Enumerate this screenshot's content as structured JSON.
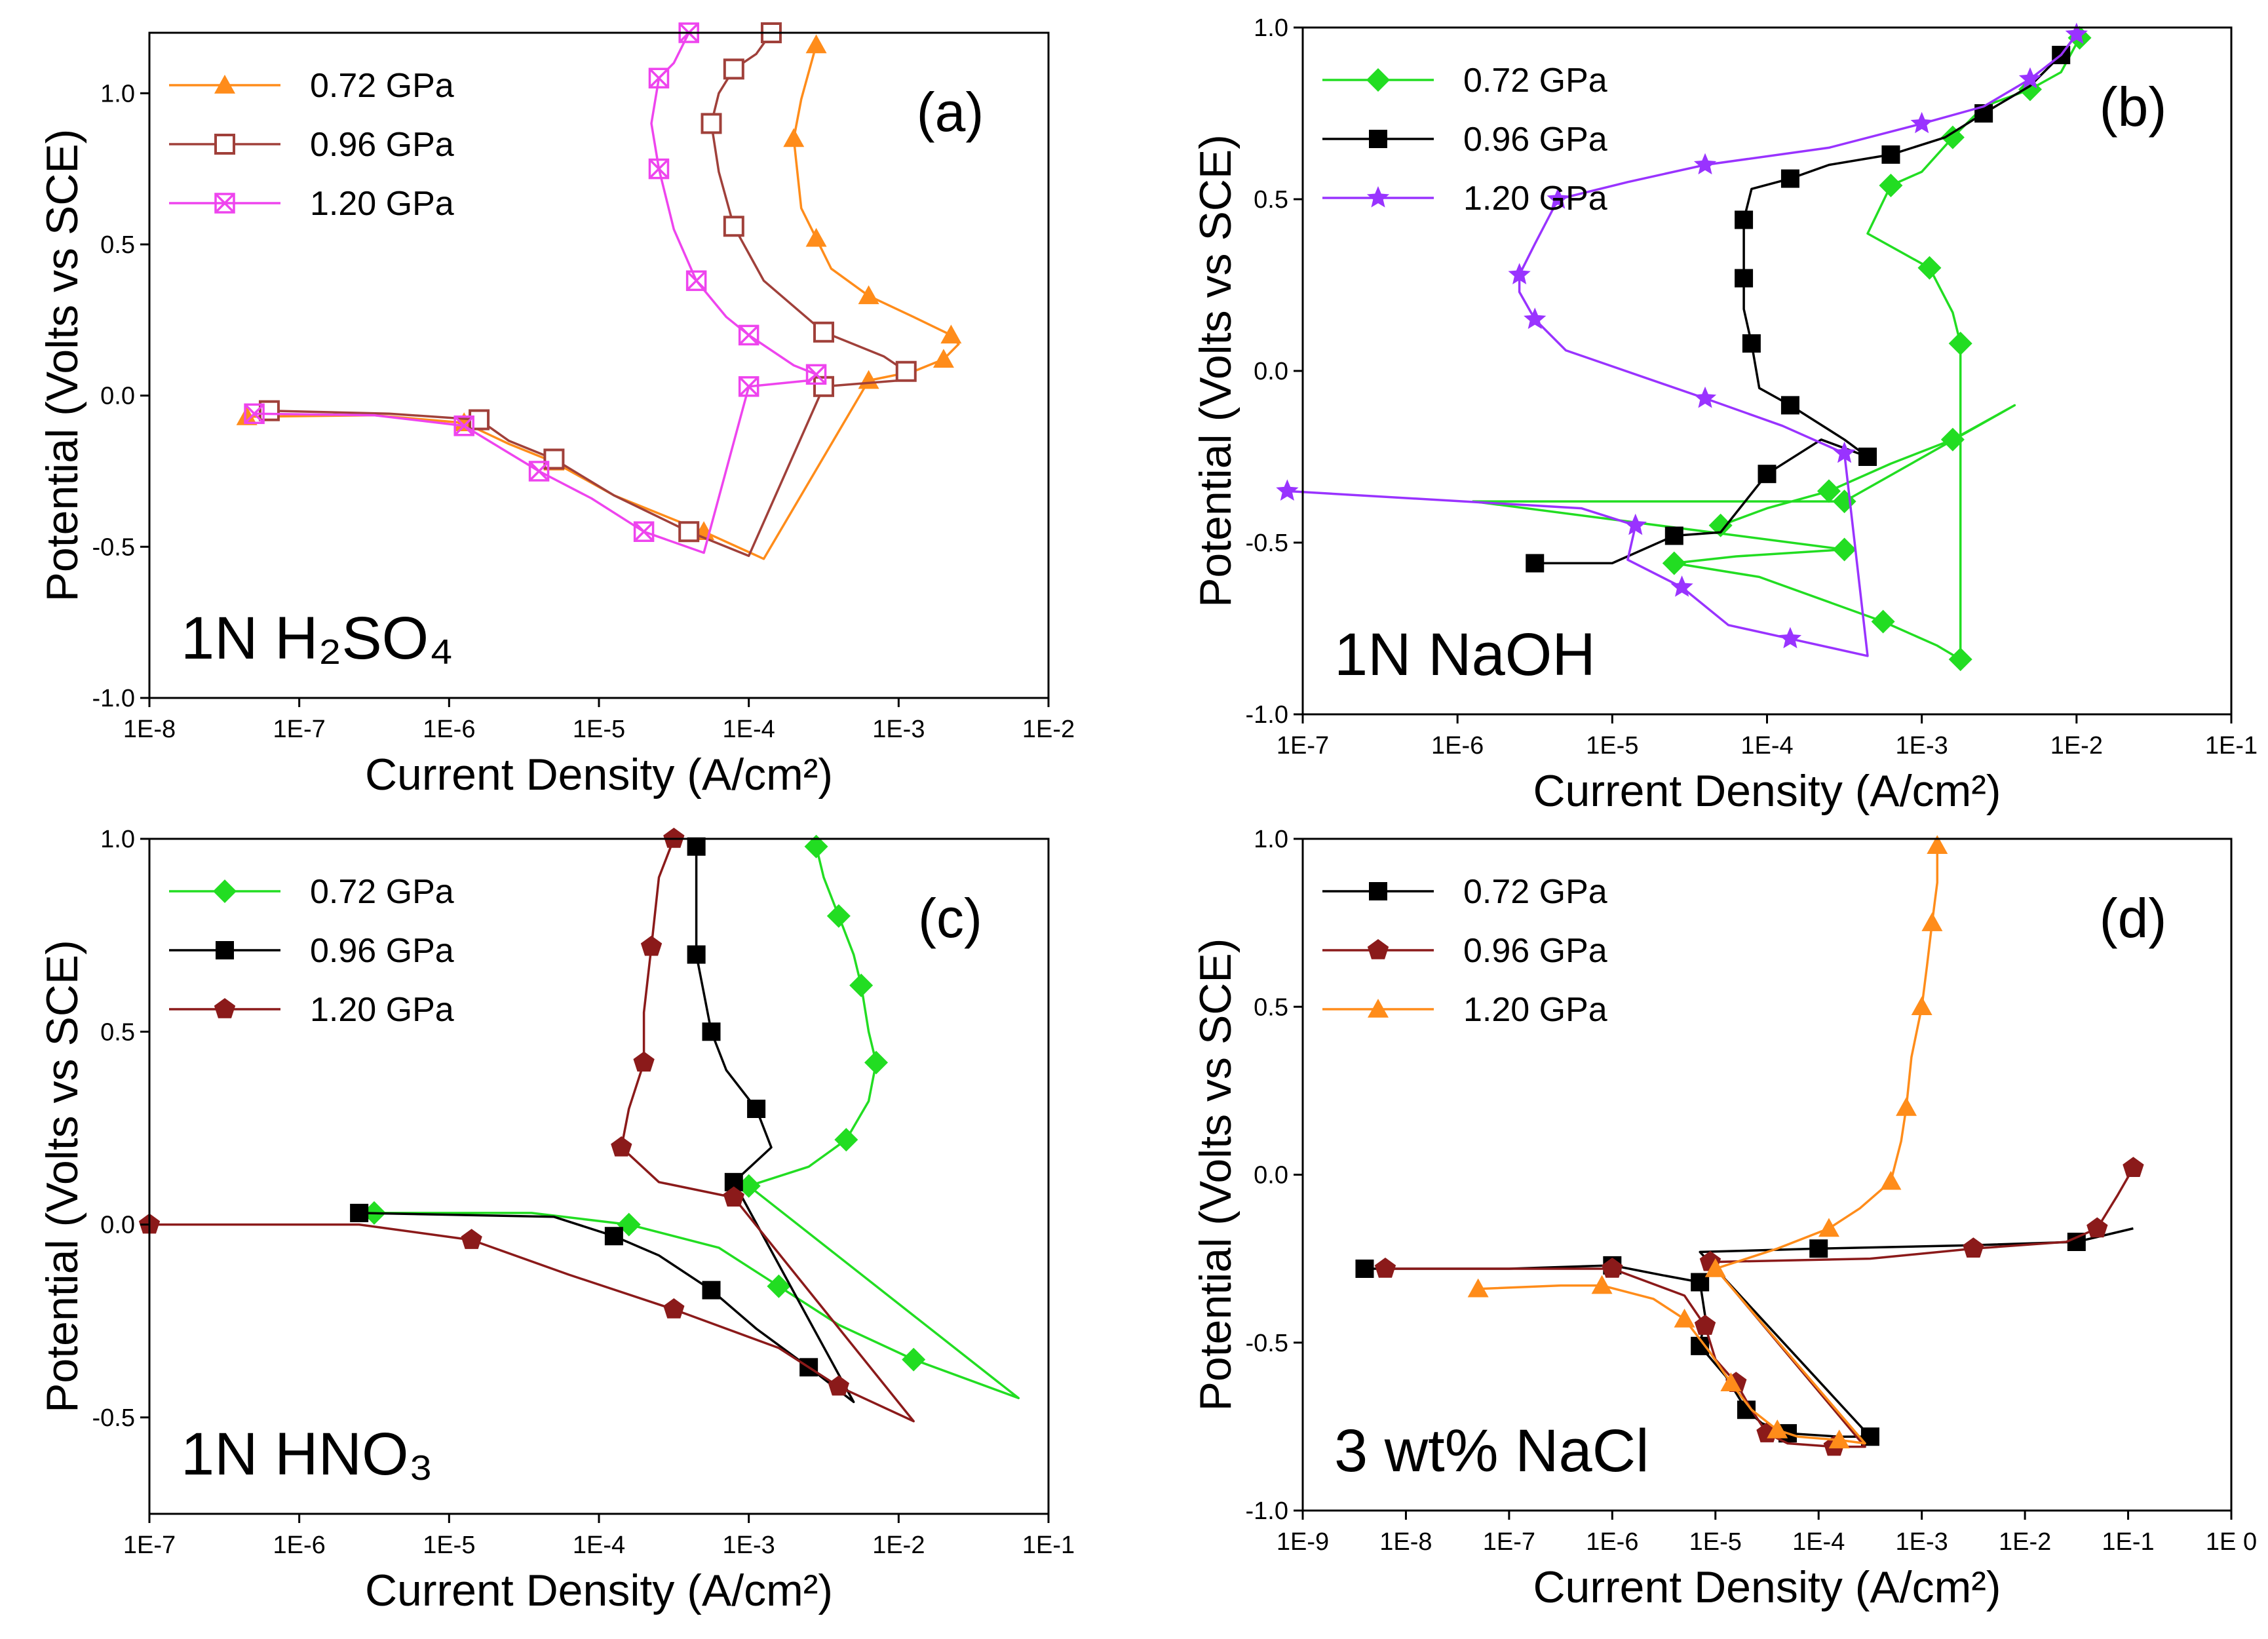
{
  "colors": {
    "orange": "#ff8c1a",
    "brown": "#a0403a",
    "magenta": "#ee44ee",
    "green": "#22dd22",
    "black": "#000000",
    "gray": "#777777",
    "purple": "#9933ff",
    "darkred": "#8b1a1a"
  },
  "chart_data": [
    {
      "type": "line",
      "panel": "(a)",
      "corrosive": "1N H₂SO₄",
      "xlabel": "Current Density (A/cm²)",
      "ylabel": "Potential (Volts vs SCE)",
      "xscale": "log",
      "xlim": [
        -8,
        -2
      ],
      "ylim": [
        -1.0,
        1.2
      ],
      "xticks": [
        "1E-8",
        "1E-7",
        "1E-6",
        "1E-5",
        "1E-4",
        "1E-3",
        "1E-2"
      ],
      "yticks": [
        "-1.0",
        "-0.5",
        "0.0",
        "0.5",
        "1.0"
      ],
      "legend_position": "top-left",
      "series": [
        {
          "name": "0.72 GPa",
          "color": "#ff8c1a",
          "marker": "triangle",
          "x": [
            -7.35,
            -6.5,
            -5.9,
            -5.6,
            -5.3,
            -4.9,
            -4.3,
            -3.9,
            -3.2,
            -2.9,
            -2.7,
            -2.6,
            -2.65,
            -2.9,
            -3.2,
            -3.45,
            -3.55,
            -3.65,
            -3.7,
            -3.65,
            -3.55
          ],
          "y": [
            -0.07,
            -0.065,
            -0.09,
            -0.16,
            -0.22,
            -0.33,
            -0.45,
            -0.54,
            0.05,
            0.08,
            0.12,
            0.17,
            0.2,
            0.26,
            0.33,
            0.42,
            0.52,
            0.62,
            0.85,
            0.98,
            1.16
          ]
        },
        {
          "name": "0.96 GPa",
          "color": "#a0403a",
          "marker": "open-square",
          "x": [
            -7.2,
            -6.4,
            -5.8,
            -5.6,
            -5.3,
            -4.9,
            -4.4,
            -4.0,
            -3.5,
            -3.0,
            -2.95,
            -3.1,
            -3.5,
            -3.9,
            -4.1,
            -4.2,
            -4.25,
            -4.2,
            -4.1,
            -3.95,
            -3.85
          ],
          "y": [
            -0.05,
            -0.06,
            -0.08,
            -0.15,
            -0.21,
            -0.33,
            -0.45,
            -0.53,
            0.03,
            0.05,
            0.08,
            0.13,
            0.21,
            0.38,
            0.56,
            0.74,
            0.9,
            1.0,
            1.08,
            1.13,
            1.2
          ]
        },
        {
          "name": "1.20 GPa",
          "color": "#ee44ee",
          "marker": "crossed-square",
          "x": [
            -7.3,
            -6.5,
            -5.9,
            -5.7,
            -5.4,
            -5.05,
            -4.7,
            -4.3,
            -4.0,
            -3.6,
            -3.55,
            -3.7,
            -4.0,
            -4.15,
            -4.35,
            -4.5,
            -4.6,
            -4.65,
            -4.6,
            -4.5,
            -4.4
          ],
          "y": [
            -0.06,
            -0.065,
            -0.1,
            -0.16,
            -0.25,
            -0.34,
            -0.45,
            -0.52,
            0.03,
            0.05,
            0.07,
            0.1,
            0.2,
            0.26,
            0.38,
            0.55,
            0.75,
            0.9,
            1.05,
            1.1,
            1.2
          ]
        }
      ]
    },
    {
      "type": "line",
      "panel": "(b)",
      "corrosive": "1N NaOH",
      "xlabel": "Current Density (A/cm²)",
      "ylabel": "Potential (Volts vs SCE)",
      "xscale": "log",
      "xlim": [
        -7,
        -1
      ],
      "ylim": [
        -1.0,
        1.0
      ],
      "xticks": [
        "1E-7",
        "1E-6",
        "1E-5",
        "1E-4",
        "1E-3",
        "1E-2",
        "1E-1"
      ],
      "yticks": [
        "-1.0",
        "-0.5",
        "0.0",
        "0.5",
        "1.0"
      ],
      "legend_position": "top-left",
      "series": [
        {
          "name": "0.72 GPa",
          "color": "#22dd22",
          "marker": "diamond",
          "x": [
            -4.3,
            -4.0,
            -3.6,
            -3.2,
            -2.8,
            -2.4,
            -3.5,
            -5.9,
            -3.5,
            -4.2,
            -4.6,
            -4.05,
            -3.25,
            -2.9,
            -2.75,
            -2.75,
            -2.75,
            -2.8,
            -2.95,
            -3.35,
            -3.2,
            -3.0,
            -2.8,
            -2.6,
            -2.3,
            -2.1,
            -1.98
          ],
          "y": [
            -0.45,
            -0.4,
            -0.35,
            -0.27,
            -0.2,
            -0.1,
            -0.38,
            -0.38,
            -0.52,
            -0.54,
            -0.56,
            -0.6,
            -0.73,
            -0.8,
            -0.84,
            0.0,
            0.08,
            0.17,
            0.3,
            0.4,
            0.54,
            0.58,
            0.68,
            0.77,
            0.82,
            0.87,
            0.97
          ]
        },
        {
          "name": "0.96 GPa",
          "color": "#000000",
          "marker": "square",
          "x": [
            -5.5,
            -5.0,
            -4.6,
            -4.3,
            -4.0,
            -3.65,
            -3.35,
            -3.5,
            -3.85,
            -4.05,
            -4.1,
            -4.15,
            -4.15,
            -4.15,
            -4.15,
            -4.1,
            -3.85,
            -3.6,
            -3.2,
            -2.85,
            -2.6,
            -2.3,
            -2.1,
            -2.0
          ],
          "y": [
            -0.56,
            -0.56,
            -0.48,
            -0.47,
            -0.3,
            -0.2,
            -0.25,
            -0.2,
            -0.1,
            -0.05,
            0.08,
            0.18,
            0.27,
            0.35,
            0.44,
            0.53,
            0.56,
            0.6,
            0.63,
            0.68,
            0.75,
            0.83,
            0.92,
            0.98
          ]
        },
        {
          "name": "1.20 GPa",
          "color": "#9933ff",
          "marker": "star",
          "x": [
            -7.1,
            -5.2,
            -4.85,
            -4.9,
            -4.55,
            -4.25,
            -3.85,
            -3.35,
            -3.5,
            -3.9,
            -4.4,
            -5.3,
            -5.5,
            -5.6,
            -5.6,
            -5.5,
            -5.35,
            -4.9,
            -4.4,
            -3.6,
            -3.0,
            -2.6,
            -2.3,
            -2.1,
            -2.0
          ],
          "y": [
            -0.35,
            -0.4,
            -0.45,
            -0.55,
            -0.63,
            -0.74,
            -0.78,
            -0.83,
            -0.24,
            -0.16,
            -0.08,
            0.06,
            0.15,
            0.23,
            0.28,
            0.37,
            0.5,
            0.55,
            0.6,
            0.65,
            0.72,
            0.77,
            0.85,
            0.92,
            0.98
          ]
        }
      ]
    },
    {
      "type": "line",
      "panel": "(c)",
      "corrosive": "1N HNO₃",
      "xlabel": "Current Density (A/cm²)",
      "ylabel": "Potential (Volts vs SCE)",
      "xscale": "log",
      "xlim": [
        -7,
        -1
      ],
      "ylim": [
        -0.75,
        1.0
      ],
      "xticks": [
        "1E-7",
        "1E-6",
        "1E-5",
        "1E-4",
        "1E-3",
        "1E-2",
        "1E-1"
      ],
      "yticks": [
        "-0.5",
        "0.0",
        "0.5",
        "1.0"
      ],
      "legend_position": "top-left",
      "series": [
        {
          "name": "0.72 GPa",
          "color": "#22dd22",
          "marker": "diamond",
          "x": [
            -5.5,
            -4.45,
            -3.8,
            -3.2,
            -2.8,
            -2.4,
            -1.9,
            -1.2,
            -3.0,
            -2.6,
            -2.35,
            -2.2,
            -2.15,
            -2.2,
            -2.25,
            -2.3,
            -2.4,
            -2.5,
            -2.55
          ],
          "y": [
            0.03,
            0.03,
            0.0,
            -0.06,
            -0.16,
            -0.26,
            -0.35,
            -0.45,
            0.1,
            0.15,
            0.22,
            0.32,
            0.42,
            0.5,
            0.62,
            0.7,
            0.8,
            0.9,
            0.98
          ]
        },
        {
          "name": "0.96 GPa",
          "color": "#000000",
          "marker": "square",
          "x": [
            -5.6,
            -4.3,
            -3.9,
            -3.6,
            -3.25,
            -2.95,
            -2.6,
            -2.3,
            -3.1,
            -2.85,
            -2.95,
            -3.15,
            -3.25,
            -3.3,
            -3.35,
            -3.35,
            -3.35
          ],
          "y": [
            0.03,
            0.02,
            -0.03,
            -0.08,
            -0.17,
            -0.27,
            -0.37,
            -0.46,
            0.11,
            0.2,
            0.3,
            0.4,
            0.5,
            0.6,
            0.7,
            0.85,
            0.98
          ]
        },
        {
          "name": "1.20 GPa",
          "color": "#8b1a1a",
          "marker": "pentagon",
          "x": [
            -7.0,
            -5.6,
            -4.85,
            -4.2,
            -3.5,
            -2.8,
            -2.4,
            -1.9,
            -3.1,
            -3.6,
            -3.85,
            -3.8,
            -3.7,
            -3.7,
            -3.65,
            -3.6,
            -3.5
          ],
          "y": [
            0.0,
            0.0,
            -0.04,
            -0.13,
            -0.22,
            -0.32,
            -0.42,
            -0.51,
            0.07,
            0.11,
            0.2,
            0.3,
            0.42,
            0.55,
            0.72,
            0.9,
            1.0
          ]
        }
      ]
    },
    {
      "type": "line",
      "panel": "(d)",
      "corrosive": "3 wt% NaCl",
      "xlabel": "Current Density (A/cm²)",
      "ylabel": "Potential (Volts vs SCE)",
      "xscale": "log",
      "xlim": [
        -9,
        0
      ],
      "ylim": [
        -1.0,
        1.0
      ],
      "xticks": [
        "1E-9",
        "1E-8",
        "1E-7",
        "1E-6",
        "1E-5",
        "1E-4",
        "1E-3",
        "1E-2",
        "1E-1",
        "1E 0"
      ],
      "yticks": [
        "-1.0",
        "-0.5",
        "0.0",
        "0.5",
        "1.0"
      ],
      "legend_position": "top-left",
      "series": [
        {
          "name": "0.72 GPa",
          "color": "#000000",
          "marker": "square",
          "x": [
            -8.4,
            -7.0,
            -6.0,
            -5.5,
            -5.15,
            -5.1,
            -5.15,
            -4.9,
            -4.7,
            -4.55,
            -4.3,
            -3.8,
            -3.5,
            -5.15,
            -4.0,
            -2.5,
            -1.5,
            -0.95
          ],
          "y": [
            -0.28,
            -0.28,
            -0.27,
            -0.3,
            -0.32,
            -0.42,
            -0.51,
            -0.6,
            -0.7,
            -0.74,
            -0.77,
            -0.78,
            -0.78,
            -0.23,
            -0.22,
            -0.21,
            -0.2,
            -0.16
          ]
        },
        {
          "name": "0.96 GPa",
          "color": "#8b1a1a",
          "marker": "pentagon",
          "x": [
            -8.2,
            -7.0,
            -6.0,
            -5.3,
            -5.1,
            -5.0,
            -4.8,
            -4.65,
            -4.5,
            -4.3,
            -3.85,
            -3.55,
            -5.05,
            -3.5,
            -2.5,
            -1.6,
            -1.3,
            -1.1,
            -0.95
          ],
          "y": [
            -0.28,
            -0.28,
            -0.28,
            -0.36,
            -0.45,
            -0.55,
            -0.62,
            -0.7,
            -0.77,
            -0.8,
            -0.81,
            -0.81,
            -0.26,
            -0.25,
            -0.22,
            -0.2,
            -0.16,
            -0.06,
            0.02
          ]
        },
        {
          "name": "1.20 GPa",
          "color": "#ff8c1a",
          "marker": "triangle",
          "x": [
            -7.3,
            -6.5,
            -6.1,
            -5.6,
            -5.3,
            -5.05,
            -4.85,
            -4.65,
            -4.4,
            -4.2,
            -3.8,
            -3.55,
            -5.0,
            -4.4,
            -3.9,
            -3.6,
            -3.3,
            -3.2,
            -3.15,
            -3.1,
            -3.0,
            -2.95,
            -2.9,
            -2.85,
            -2.85
          ],
          "y": [
            -0.34,
            -0.33,
            -0.33,
            -0.37,
            -0.43,
            -0.53,
            -0.62,
            -0.7,
            -0.76,
            -0.78,
            -0.79,
            -0.8,
            -0.28,
            -0.22,
            -0.16,
            -0.1,
            -0.02,
            0.1,
            0.2,
            0.35,
            0.5,
            0.62,
            0.75,
            0.87,
            0.98
          ]
        }
      ]
    }
  ]
}
